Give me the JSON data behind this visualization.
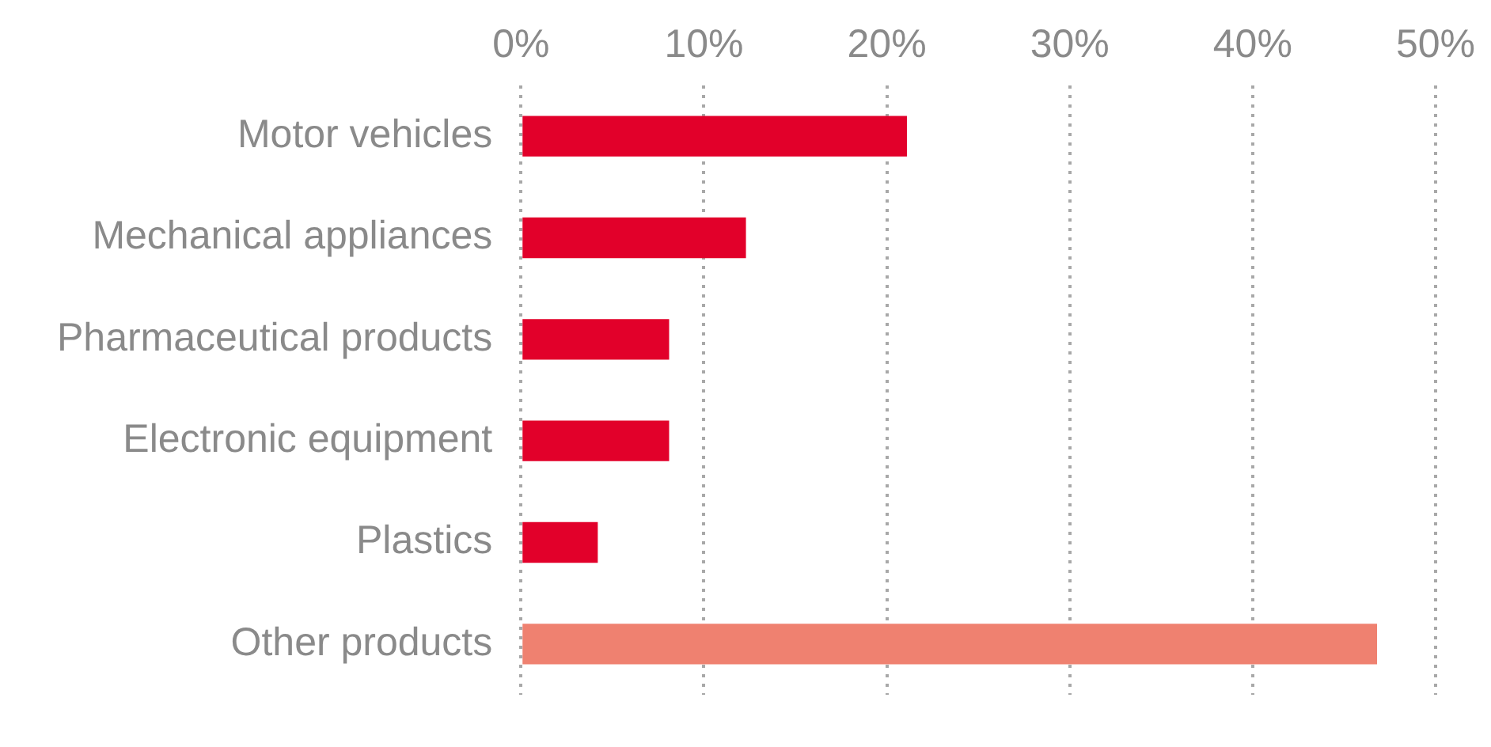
{
  "chart_data": {
    "type": "bar",
    "orientation": "horizontal",
    "grid": "x",
    "categories": [
      "Motor vehicles",
      "Mechanical appliances",
      "Pharmaceutical products",
      "Electronic equipment",
      "Plastics",
      "Other products"
    ],
    "values": [
      21.1,
      12.3,
      8.1,
      8.1,
      4.2,
      46.8
    ],
    "colors": [
      "#e2002a",
      "#e2002a",
      "#e2002a",
      "#e2002a",
      "#e2002a",
      "#ef8170"
    ],
    "xlim": [
      0,
      50
    ],
    "xticks": [
      {
        "value": 0,
        "label": "0%"
      },
      {
        "value": 10,
        "label": "10%"
      },
      {
        "value": 20,
        "label": "20%"
      },
      {
        "value": 30,
        "label": "30%"
      },
      {
        "value": 40,
        "label": "40%"
      },
      {
        "value": 50,
        "label": "50%"
      }
    ]
  }
}
